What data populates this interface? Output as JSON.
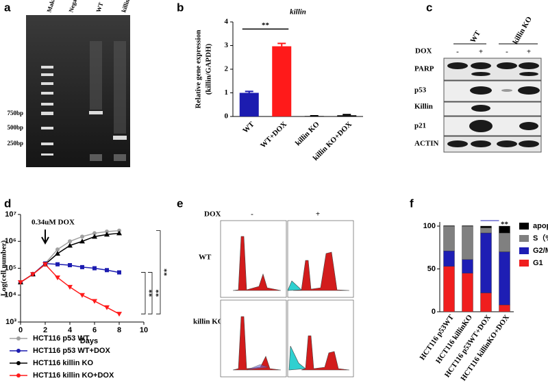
{
  "panel_letters": [
    "a",
    "b",
    "c",
    "d",
    "e",
    "f"
  ],
  "gel": {
    "lanes": [
      "Maker",
      "Negative",
      "WT",
      "killin KO"
    ],
    "sizes": [
      "750bp",
      "500bp",
      "250bp"
    ]
  },
  "blot": {
    "groups": [
      "WT",
      "killin KO"
    ],
    "treatment": "DOX",
    "conditions": [
      "-",
      "+",
      "-",
      "+"
    ],
    "proteins": [
      "PARP",
      "p53",
      "Killin",
      "p21",
      "ACTIN"
    ]
  },
  "flow": {
    "treatment": "DOX",
    "conditions": [
      "-",
      "+"
    ],
    "rows": [
      "WT",
      "killin KO"
    ]
  },
  "chart_data": [
    {
      "type": "bar",
      "title": "killin",
      "ylabel": [
        "Relative gene expression",
        "(killin/GAPDH)"
      ],
      "categories": [
        "WT",
        "WT+DOX",
        "killin KO",
        "killin KO+DOX"
      ],
      "values": [
        1.0,
        2.97,
        0.02,
        0.05
      ],
      "errors": [
        0.06,
        0.12,
        0.01,
        0.03
      ],
      "colors": [
        "#1c1cb0",
        "#ff1a1a",
        "#000000",
        "#000000"
      ],
      "ylim": [
        0,
        4
      ],
      "yticks": [
        0,
        1,
        2,
        3,
        4
      ],
      "annotation": "**"
    },
    {
      "type": "line",
      "xlabel": "Days",
      "ylabel": "Log(cell number)",
      "annotation": "0.34uM DOX",
      "significance": [
        "**",
        "**",
        "**"
      ],
      "x": [
        0,
        1,
        2,
        3,
        4,
        5,
        6,
        7,
        8
      ],
      "series": [
        {
          "name": "HCT116 p53 WT",
          "color": "#a0a0a0",
          "marker": "circle",
          "values": [
            30000,
            60000,
            150000,
            500000,
            1000000,
            1500000,
            2000000,
            2300000,
            2500000
          ]
        },
        {
          "name": "HCT116 p53 WT+DOX",
          "color": "#1c1cb0",
          "marker": "square",
          "values": [
            30000,
            60000,
            150000,
            140000,
            130000,
            110000,
            100000,
            85000,
            70000
          ]
        },
        {
          "name": "HCT116 killin KO",
          "color": "#000000",
          "marker": "triangle",
          "values": [
            30000,
            60000,
            140000,
            350000,
            700000,
            1000000,
            1500000,
            1800000,
            2000000
          ]
        },
        {
          "name": "HCT116 killin KO+DOX",
          "color": "#ff1a1a",
          "marker": "triangle-down",
          "values": [
            30000,
            60000,
            140000,
            45000,
            20000,
            10000,
            6000,
            3500,
            2000
          ]
        }
      ],
      "xlim": [
        0,
        10
      ],
      "xticks": [
        0,
        2,
        4,
        6,
        8,
        10
      ],
      "ylim": [
        1000,
        10000000
      ],
      "log_y": true,
      "yticks": [
        {
          "value": 1000,
          "label": "10³"
        },
        {
          "value": 10000,
          "label": "10⁴"
        },
        {
          "value": 100000,
          "label": "10⁵"
        },
        {
          "value": 1000000,
          "label": "10⁶"
        },
        {
          "value": 10000000,
          "label": "10⁷"
        }
      ]
    },
    {
      "type": "stacked_bar",
      "categories": [
        "HCT116 p53WT",
        "HCT116 killinKO",
        "HCT116 p53WT+DOX",
        "HCT116 killinKO+DOX"
      ],
      "series": [
        {
          "name": "G1（%）",
          "color": "#f01e1e",
          "values": [
            53,
            45,
            22,
            8
          ]
        },
        {
          "name": "G2/M（%）",
          "color": "#1e1eb4",
          "values": [
            18,
            16,
            70,
            62
          ]
        },
        {
          "name": "S（%）",
          "color": "#808080",
          "values": [
            29,
            39,
            6,
            22
          ]
        },
        {
          "name": "apoptosis（%）",
          "color": "#000000",
          "values": [
            0.5,
            0.5,
            2,
            8
          ]
        }
      ],
      "ylim": [
        0,
        100
      ],
      "yticks": [
        0,
        50,
        100
      ],
      "annotation": "**"
    }
  ]
}
